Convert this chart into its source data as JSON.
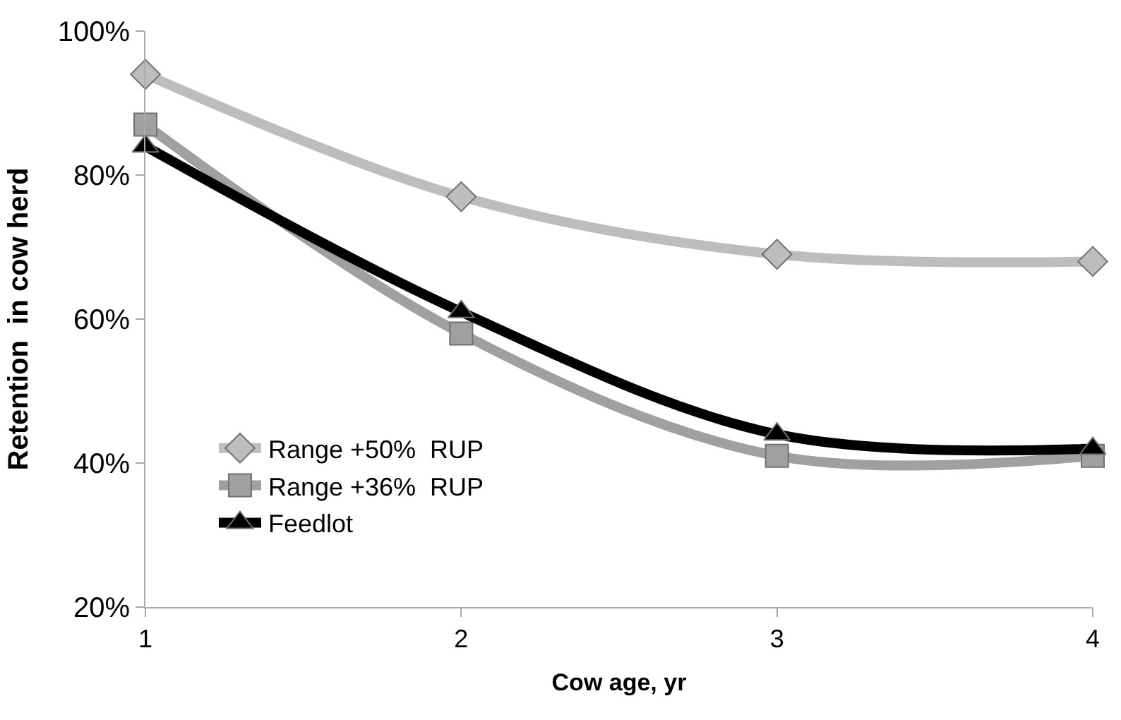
{
  "chart_data": {
    "type": "line",
    "xlabel": "Cow age, yr",
    "ylabel": "Retention  in cow herd",
    "x": [
      1,
      2,
      3,
      4
    ],
    "xlim": [
      1,
      4
    ],
    "xticks": [
      1,
      2,
      3,
      4
    ],
    "ylim": [
      20,
      100
    ],
    "yticks": [
      {
        "value": 20,
        "label": "20%"
      },
      {
        "value": 40,
        "label": "40%"
      },
      {
        "value": 60,
        "label": "60%"
      },
      {
        "value": 80,
        "label": "80%"
      },
      {
        "value": 100,
        "label": "100%"
      }
    ],
    "legend": "bottom left",
    "series": [
      {
        "name": "Range +50%  RUP",
        "color": "#bdbdbd",
        "marker": "diamond",
        "values": [
          94,
          77,
          69,
          68
        ]
      },
      {
        "name": "Range +36%  RUP",
        "color": "#a0a0a0",
        "marker": "square",
        "values": [
          87,
          58,
          41,
          41
        ]
      },
      {
        "name": "Feedlot",
        "color": "#000000",
        "marker": "triangle",
        "values": [
          84,
          61,
          44,
          42
        ]
      }
    ]
  }
}
